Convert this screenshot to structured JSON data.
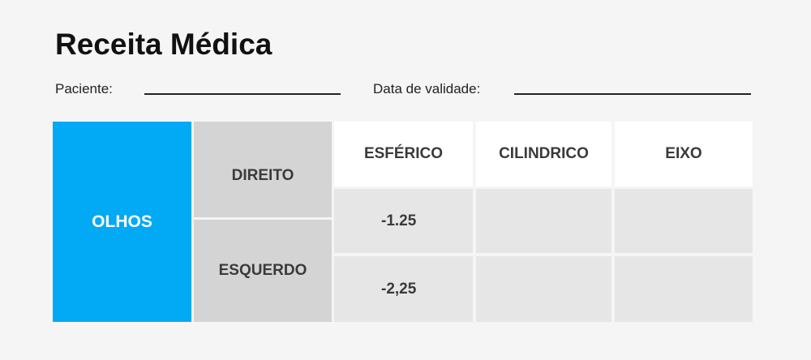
{
  "header": {
    "title": "Receita Médica"
  },
  "fields": [
    {
      "label": "Paciente:"
    },
    {
      "label": "Data de validade:"
    }
  ],
  "table": {
    "group_label": "OLHOS",
    "columns": [
      "ESFÉRICO",
      "CILINDRICO",
      "EIXO"
    ],
    "rows": [
      {
        "label": "DIREITO",
        "values": [
          "-1.25"
        ]
      },
      {
        "label": "ESQUERDO",
        "values": [
          "-2,25"
        ]
      }
    ]
  }
}
